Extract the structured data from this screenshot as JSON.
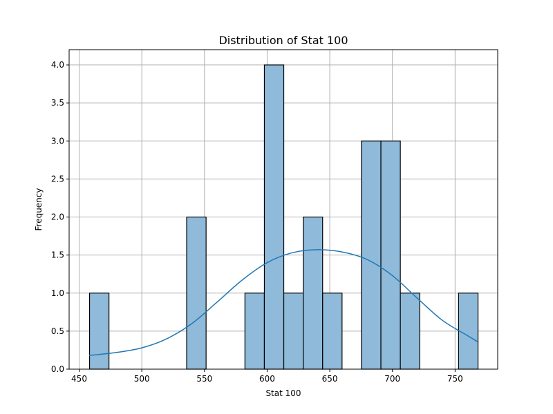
{
  "chart_data": {
    "type": "bar",
    "title": "Distribution of Stat 100",
    "xlabel": "Stat 100",
    "ylabel": "Frequency",
    "xlim": [
      442,
      784
    ],
    "ylim": [
      0,
      4.2
    ],
    "grid": true,
    "x_ticks": [
      450,
      500,
      550,
      600,
      650,
      700,
      750
    ],
    "y_ticks": [
      0.0,
      0.5,
      1.0,
      1.5,
      2.0,
      2.5,
      3.0,
      3.5,
      4.0
    ],
    "x_tick_labels": [
      "450",
      "500",
      "550",
      "600",
      "650",
      "700",
      "750"
    ],
    "y_tick_labels": [
      "0.0",
      "0.5",
      "1.0",
      "1.5",
      "2.0",
      "2.5",
      "3.0",
      "3.5",
      "4.0"
    ],
    "bin_edges": [
      458.3,
      473.8,
      489.3,
      504.8,
      520.3,
      535.8,
      551.3,
      566.8,
      582.3,
      597.8,
      613.3,
      628.8,
      644.3,
      659.8,
      675.3,
      690.8,
      706.3,
      721.8,
      737.3,
      752.8,
      768.3
    ],
    "counts": [
      1,
      0,
      0,
      0,
      0,
      2,
      0,
      0,
      1,
      4,
      1,
      2,
      1,
      0,
      3,
      3,
      1,
      0,
      0,
      1
    ],
    "kde": {
      "x": [
        458,
        480,
        500,
        520,
        540,
        560,
        580,
        600,
        620,
        640,
        660,
        680,
        700,
        720,
        740,
        760,
        768
      ],
      "y": [
        0.18,
        0.22,
        0.28,
        0.4,
        0.6,
        0.88,
        1.17,
        1.4,
        1.53,
        1.57,
        1.54,
        1.44,
        1.23,
        0.93,
        0.64,
        0.44,
        0.36
      ]
    },
    "colors": {
      "bar_fill": "#8fbad9",
      "bar_edge": "#000000",
      "kde_line": "#1f77b4",
      "grid": "#b0b0b0"
    }
  }
}
